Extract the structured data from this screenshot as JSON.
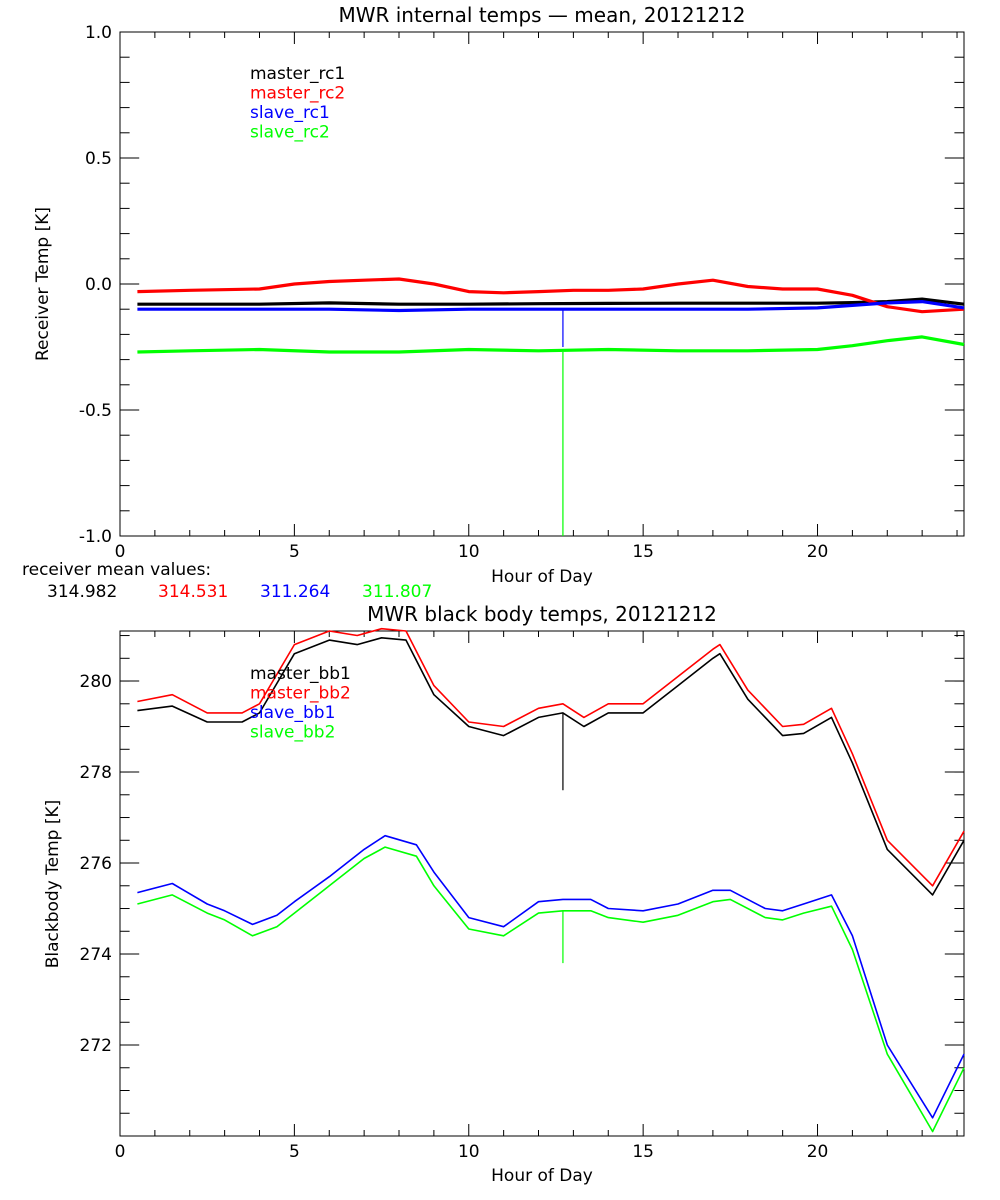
{
  "chart_data": [
    {
      "type": "line",
      "title": "MWR internal temps — mean, 20121212",
      "xlabel": "Hour of Day",
      "ylabel": "Receiver Temp [K]",
      "xlim": [
        0,
        24.2
      ],
      "ylim": [
        -1.0,
        1.0
      ],
      "xticks": [
        0,
        5,
        10,
        15,
        20
      ],
      "yticks": [
        1.0,
        0.5,
        0.0,
        -0.5,
        -1.0
      ],
      "ytick_labels": [
        "1.0",
        "0.5",
        "0.0",
        "-0.5",
        "-1.0"
      ],
      "legend_position": "top-left",
      "series": [
        {
          "name": "master_rc1",
          "color": "#000000",
          "x": [
            0.5,
            2,
            4,
            6,
            8,
            10,
            12,
            14,
            16,
            18,
            20,
            21,
            22,
            23,
            24.2
          ],
          "y": [
            -0.08,
            -0.08,
            -0.08,
            -0.075,
            -0.08,
            -0.08,
            -0.078,
            -0.077,
            -0.076,
            -0.076,
            -0.076,
            -0.074,
            -0.07,
            -0.06,
            -0.08
          ]
        },
        {
          "name": "master_rc2",
          "color": "#ff0000",
          "x": [
            0.5,
            2,
            4,
            5,
            6,
            7,
            8,
            9,
            10,
            11,
            12,
            13,
            14,
            15,
            16,
            17,
            18,
            19,
            20,
            21,
            22,
            23,
            24.2
          ],
          "y": [
            -0.03,
            -0.025,
            -0.02,
            0.0,
            0.01,
            0.015,
            0.02,
            0.0,
            -0.03,
            -0.035,
            -0.03,
            -0.025,
            -0.025,
            -0.02,
            0.0,
            0.015,
            -0.01,
            -0.02,
            -0.02,
            -0.045,
            -0.09,
            -0.11,
            -0.1
          ]
        },
        {
          "name": "slave_rc1",
          "color": "#0000ff",
          "x": [
            0.5,
            2,
            4,
            6,
            8,
            10,
            12,
            14,
            16,
            18,
            20,
            21,
            22,
            23,
            24.2
          ],
          "y": [
            -0.1,
            -0.1,
            -0.1,
            -0.1,
            -0.105,
            -0.1,
            -0.1,
            -0.1,
            -0.1,
            -0.1,
            -0.095,
            -0.085,
            -0.075,
            -0.07,
            -0.095
          ]
        },
        {
          "name": "slave_rc2",
          "color": "#00ff00",
          "x": [
            0.5,
            2,
            4,
            6,
            8,
            10,
            12,
            14,
            16,
            18,
            20,
            21,
            22,
            23,
            24.2
          ],
          "y": [
            -0.27,
            -0.265,
            -0.26,
            -0.27,
            -0.27,
            -0.26,
            -0.265,
            -0.26,
            -0.265,
            -0.265,
            -0.26,
            -0.245,
            -0.225,
            -0.21,
            -0.24
          ]
        }
      ],
      "spikes": [
        {
          "color": "#00ff00",
          "x": 12.7,
          "y_from": -0.27,
          "y_to": -1.0
        },
        {
          "color": "#0000ff",
          "x": 12.7,
          "y_from": -0.1,
          "y_to": -0.25
        }
      ],
      "mean_label": "receiver mean values:",
      "mean_values": [
        {
          "value": "314.982",
          "color": "#000000"
        },
        {
          "value": "314.531",
          "color": "#ff0000"
        },
        {
          "value": "311.264",
          "color": "#0000ff"
        },
        {
          "value": "311.807",
          "color": "#00ff00"
        }
      ]
    },
    {
      "type": "line",
      "title": "MWR black body temps, 20121212",
      "xlabel": "Hour of Day",
      "ylabel": "Blackbody Temp [K]",
      "xlim": [
        0,
        24.2
      ],
      "ylim": [
        270.0,
        281.1
      ],
      "xticks": [
        0,
        5,
        10,
        15,
        20
      ],
      "yticks": [
        272,
        274,
        276,
        278,
        280
      ],
      "ytick_labels": [
        "272",
        "274",
        "276",
        "278",
        "280"
      ],
      "legend_position": "top-left",
      "series": [
        {
          "name": "master_bb1",
          "color": "#000000",
          "x": [
            0.5,
            1.5,
            2.5,
            3.0,
            3.5,
            4.0,
            5.0,
            6.0,
            6.8,
            7.5,
            8.2,
            9.0,
            10.0,
            11.0,
            12.0,
            12.7,
            13.3,
            14.0,
            15.0,
            16.0,
            17.0,
            17.2,
            18.0,
            19.0,
            19.6,
            20.4,
            21.0,
            22.0,
            23.3,
            24.2
          ],
          "y": [
            279.35,
            279.45,
            279.1,
            279.1,
            279.1,
            279.3,
            280.6,
            280.9,
            280.8,
            280.95,
            280.9,
            279.7,
            279.0,
            278.8,
            279.2,
            279.3,
            279.0,
            279.3,
            279.3,
            279.9,
            280.5,
            280.6,
            279.6,
            278.8,
            278.85,
            279.2,
            278.2,
            276.3,
            275.3,
            276.5
          ]
        },
        {
          "name": "master_bb2",
          "color": "#ff0000",
          "x": [
            0.5,
            1.5,
            2.5,
            3.0,
            3.5,
            4.0,
            5.0,
            6.0,
            6.8,
            7.5,
            8.2,
            9.0,
            10.0,
            11.0,
            12.0,
            12.7,
            13.3,
            14.0,
            15.0,
            16.0,
            17.0,
            17.2,
            18.0,
            19.0,
            19.6,
            20.4,
            21.0,
            22.0,
            23.3,
            24.2
          ],
          "y": [
            279.55,
            279.7,
            279.3,
            279.3,
            279.3,
            279.5,
            280.8,
            281.1,
            281.0,
            281.15,
            281.1,
            279.9,
            279.1,
            279.0,
            279.4,
            279.5,
            279.2,
            279.5,
            279.5,
            280.1,
            280.7,
            280.8,
            279.8,
            279.0,
            279.05,
            279.4,
            278.4,
            276.5,
            275.5,
            276.7
          ]
        },
        {
          "name": "slave_bb1",
          "color": "#0000ff",
          "x": [
            0.5,
            1.5,
            2.5,
            3.0,
            3.8,
            4.5,
            5.0,
            6.0,
            7.0,
            7.6,
            8.5,
            9.0,
            10.0,
            11.0,
            12.0,
            12.7,
            13.5,
            14.0,
            15.0,
            16.0,
            17.0,
            17.5,
            18.5,
            19.0,
            19.6,
            20.4,
            21.0,
            22.0,
            23.3,
            24.2
          ],
          "y": [
            275.35,
            275.55,
            275.1,
            274.95,
            274.65,
            274.85,
            275.15,
            275.7,
            276.3,
            276.6,
            276.4,
            275.8,
            274.8,
            274.6,
            275.15,
            275.2,
            275.2,
            275.0,
            274.95,
            275.1,
            275.4,
            275.4,
            275.0,
            274.95,
            275.1,
            275.3,
            274.4,
            272.0,
            270.4,
            271.8
          ]
        },
        {
          "name": "slave_bb2",
          "color": "#00ff00",
          "x": [
            0.5,
            1.5,
            2.5,
            3.0,
            3.8,
            4.5,
            5.0,
            6.0,
            7.0,
            7.6,
            8.5,
            9.0,
            10.0,
            11.0,
            12.0,
            12.7,
            13.5,
            14.0,
            15.0,
            16.0,
            17.0,
            17.5,
            18.5,
            19.0,
            19.6,
            20.4,
            21.0,
            22.0,
            23.3,
            24.2
          ],
          "y": [
            275.1,
            275.3,
            274.9,
            274.75,
            274.4,
            274.6,
            274.9,
            275.5,
            276.1,
            276.35,
            276.15,
            275.5,
            274.55,
            274.4,
            274.9,
            274.95,
            274.95,
            274.8,
            274.7,
            274.85,
            275.15,
            275.2,
            274.8,
            274.75,
            274.9,
            275.05,
            274.1,
            271.8,
            270.1,
            271.5
          ]
        }
      ],
      "spikes": [
        {
          "color": "#000000",
          "x": 12.7,
          "y_from": 279.3,
          "y_to": 277.6
        },
        {
          "color": "#00ff00",
          "x": 12.7,
          "y_from": 274.95,
          "y_to": 273.8
        }
      ]
    }
  ]
}
